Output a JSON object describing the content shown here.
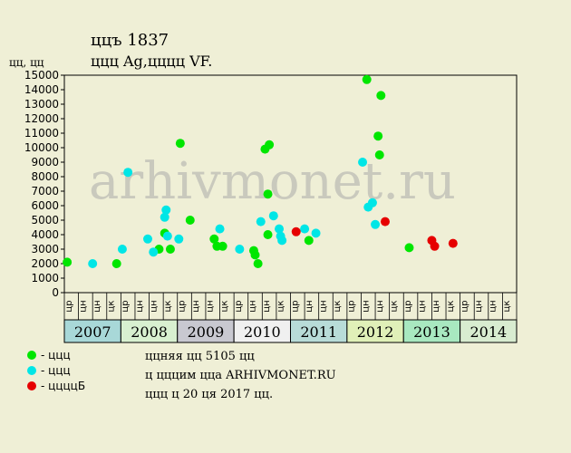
{
  "header": {
    "title": "ццъ 1837",
    "subtitle": "ццц Ag,цццц VF.",
    "ylabel": "цц, цц"
  },
  "watermark": "arhivmonet.ru",
  "legend": [
    {
      "label": "- ццц",
      "color": "#00e600"
    },
    {
      "label": "- ццц",
      "color": "#00e6e6"
    },
    {
      "label": "- ццццБ",
      "color": "#e60000"
    }
  ],
  "notes": [
    "ццняя цц 5105 цц",
    "ц цццим цца ARHIVMONET.RU",
    "ццц ц 20 ця 2017 цц."
  ],
  "chart_data": {
    "type": "scatter",
    "ylim": [
      0,
      15000
    ],
    "yticks": [
      0,
      1000,
      2000,
      3000,
      4000,
      5000,
      6000,
      7000,
      8000,
      9000,
      10000,
      11000,
      12000,
      13000,
      14000,
      15000
    ],
    "quarters": [
      "цр",
      "цн",
      "цн",
      "цк",
      "цр",
      "цн",
      "цн",
      "цк",
      "цр",
      "цн",
      "цн",
      "цк",
      "цр",
      "цн",
      "цн",
      "цк",
      "цр",
      "цн",
      "цн",
      "цк",
      "цр",
      "цн",
      "цн",
      "цк",
      "цр",
      "цн",
      "цн",
      "цк",
      "цр",
      "цн",
      "цн",
      "цк"
    ],
    "years": [
      {
        "label": "2007",
        "color": "#a8d8d8"
      },
      {
        "label": "2008",
        "color": "#d8f0d0"
      },
      {
        "label": "2009",
        "color": "#c8c8d0"
      },
      {
        "label": "2010",
        "color": "#f0f0f0"
      },
      {
        "label": "2011",
        "color": "#b8dcd8"
      },
      {
        "label": "2012",
        "color": "#e0f0b8"
      },
      {
        "label": "2013",
        "color": "#a8e8c0"
      },
      {
        "label": "2014",
        "color": "#d8ecd0"
      },
      {
        "label": "",
        "color": "#c8e0e0"
      }
    ],
    "series": [
      {
        "color": "#00e600",
        "points": [
          [
            0.2,
            2100
          ],
          [
            3.7,
            2000
          ],
          [
            6.7,
            3000
          ],
          [
            7.1,
            4100
          ],
          [
            7.5,
            3000
          ],
          [
            8.2,
            10300
          ],
          [
            8.9,
            5000
          ],
          [
            10.6,
            3700
          ],
          [
            10.8,
            3200
          ],
          [
            11.2,
            3200
          ],
          [
            13.4,
            2900
          ],
          [
            13.5,
            2600
          ],
          [
            13.7,
            2000
          ],
          [
            14.2,
            9900
          ],
          [
            14.5,
            10200
          ],
          [
            14.4,
            6800
          ],
          [
            14.4,
            4000
          ],
          [
            17.3,
            3600
          ],
          [
            21.4,
            14700
          ],
          [
            22.2,
            10800
          ],
          [
            22.4,
            13600
          ],
          [
            22.3,
            9500
          ],
          [
            24.4,
            3100
          ]
        ]
      },
      {
        "color": "#00e6e6",
        "points": [
          [
            2.0,
            2000
          ],
          [
            4.1,
            3000
          ],
          [
            4.5,
            8300
          ],
          [
            5.9,
            3700
          ],
          [
            6.3,
            2800
          ],
          [
            7.1,
            5200
          ],
          [
            7.2,
            5700
          ],
          [
            7.3,
            3900
          ],
          [
            8.1,
            3700
          ],
          [
            11.0,
            4400
          ],
          [
            12.4,
            3000
          ],
          [
            13.9,
            4900
          ],
          [
            14.8,
            5300
          ],
          [
            15.2,
            4400
          ],
          [
            15.3,
            3900
          ],
          [
            15.4,
            3600
          ],
          [
            17.0,
            4400
          ],
          [
            17.8,
            4100
          ],
          [
            21.1,
            9000
          ],
          [
            21.5,
            5900
          ],
          [
            21.8,
            6200
          ],
          [
            22.0,
            4700
          ]
        ]
      },
      {
        "color": "#e60000",
        "points": [
          [
            16.4,
            4200
          ],
          [
            22.7,
            4900
          ],
          [
            26.0,
            3600
          ],
          [
            26.2,
            3200
          ],
          [
            27.5,
            3400
          ]
        ]
      }
    ]
  }
}
